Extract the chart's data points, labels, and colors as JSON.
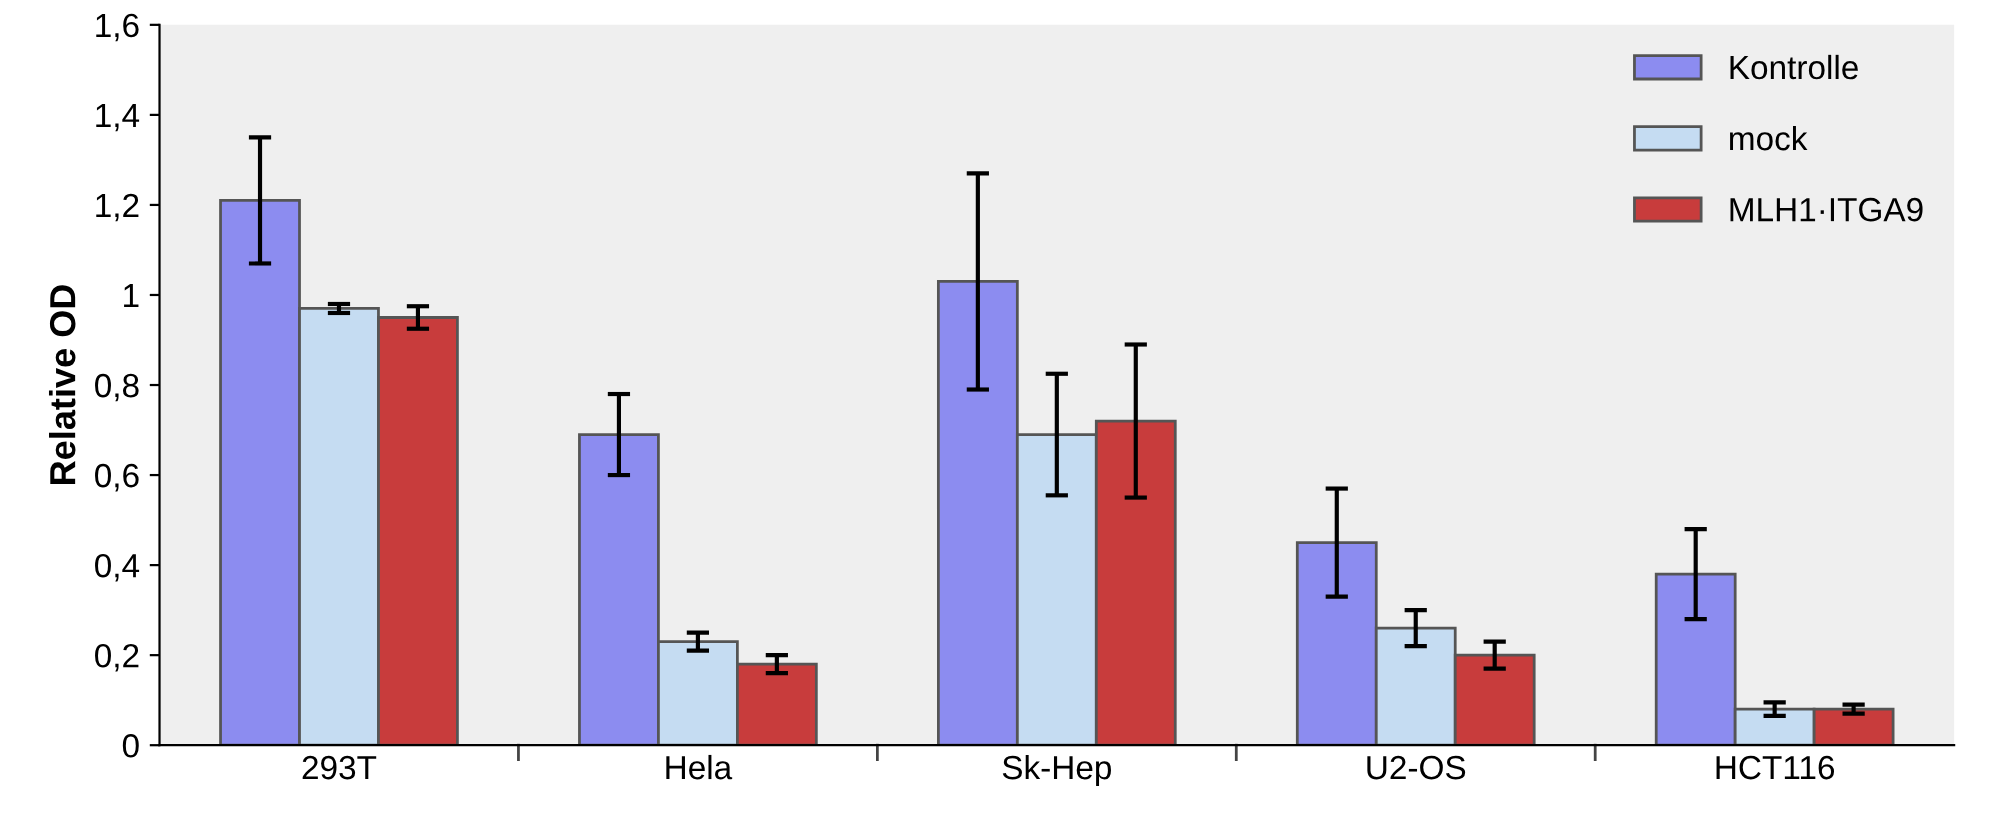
{
  "chart_data": {
    "type": "bar",
    "ylabel": "Relative OD",
    "categories": [
      "293T",
      "Hela",
      "Sk-Hep",
      "U2-OS",
      "HCT116"
    ],
    "series": [
      {
        "name": "Kontrolle",
        "color": "#8c8cf0",
        "values": [
          1.21,
          0.69,
          1.03,
          0.45,
          0.38
        ],
        "errors": [
          0.14,
          0.09,
          0.24,
          0.12,
          0.1
        ]
      },
      {
        "name": "mock",
        "color": "#c5dcf2",
        "values": [
          0.97,
          0.23,
          0.69,
          0.26,
          0.08
        ],
        "errors": [
          0.01,
          0.02,
          0.135,
          0.04,
          0.015
        ]
      },
      {
        "name": "MLH1·ITGA9",
        "color": "#c83c3c",
        "values": [
          0.95,
          0.18,
          0.72,
          0.2,
          0.08
        ],
        "errors": [
          0.025,
          0.02,
          0.17,
          0.03,
          0.01
        ]
      }
    ],
    "ylim": [
      0,
      1.6
    ],
    "yticks": [
      0,
      {
        "value": 0.2,
        "label": "0,2"
      },
      {
        "value": 0.4,
        "label": "0,4"
      },
      {
        "value": 0.6,
        "label": "0,6"
      },
      {
        "value": 0.8,
        "label": "0,8"
      },
      1,
      {
        "value": 1.2,
        "label": "1,2"
      },
      {
        "value": 1.4,
        "label": "1,4"
      },
      {
        "value": 1.6,
        "label": "1,6"
      }
    ],
    "grid": false,
    "legend": "top right"
  }
}
